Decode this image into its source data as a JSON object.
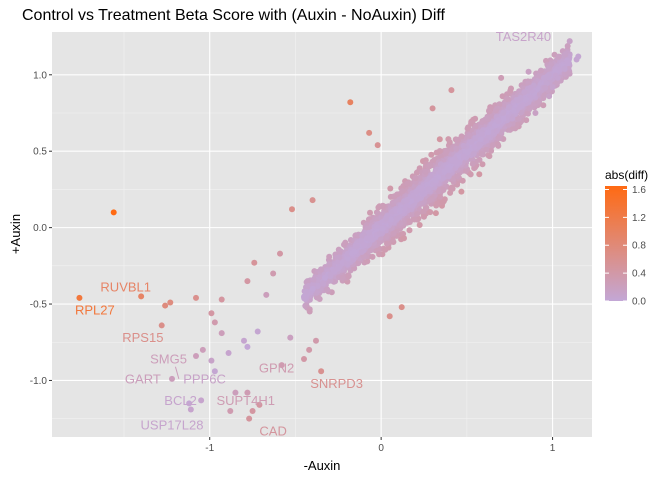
{
  "chart_data": {
    "type": "scatter",
    "title": "Control vs Treatment Beta Score with (Auxin - NoAuxin) Diff",
    "xlabel": "-Auxin",
    "ylabel": "+Auxin",
    "xlim": [
      -1.92,
      1.23
    ],
    "ylim": [
      -1.37,
      1.28
    ],
    "x_ticks": [
      -1,
      0,
      1
    ],
    "x_tick_labels": [
      "-1",
      "0",
      "1"
    ],
    "y_ticks": [
      -1.0,
      -0.5,
      0.0,
      0.5,
      1.0
    ],
    "y_tick_labels": [
      "-1.0",
      "-0.5",
      "0.0",
      "0.5",
      "1.0"
    ],
    "grid": true,
    "background": "#e5e5e5",
    "color_scale": {
      "title": "abs(diff)",
      "low_color": "#c3a7d6",
      "high_color": "#ff6a13",
      "range": [
        0,
        1.65
      ],
      "breaks": [
        0.0,
        0.4,
        0.8,
        1.2,
        1.6
      ],
      "break_labels": [
        "0.0",
        "0.4",
        "0.8",
        "1.2",
        "1.6"
      ],
      "legend_position": "right"
    },
    "cloud": {
      "description": "dense cloud of thousands of genes along the diagonal y≈x",
      "x_range": [
        -0.45,
        1.1
      ],
      "correlation": "strong positive"
    },
    "points": [
      {
        "x": -1.76,
        "y": -0.46,
        "diff": 1.3
      },
      {
        "x": -1.56,
        "y": 0.1,
        "diff": 1.66
      },
      {
        "x": -1.4,
        "y": -0.45,
        "diff": 0.95
      },
      {
        "x": -1.26,
        "y": -0.51,
        "diff": 0.75
      },
      {
        "x": -1.28,
        "y": -0.64,
        "diff": 0.64
      },
      {
        "x": -1.23,
        "y": -0.49,
        "diff": 0.74
      },
      {
        "x": -1.08,
        "y": -0.46,
        "diff": 0.62
      },
      {
        "x": -0.93,
        "y": -0.47,
        "diff": 0.46
      },
      {
        "x": -0.99,
        "y": -0.56,
        "diff": 0.43
      },
      {
        "x": -0.97,
        "y": -0.62,
        "diff": 0.35
      },
      {
        "x": -0.93,
        "y": -0.69,
        "diff": 0.24
      },
      {
        "x": -1.08,
        "y": -0.84,
        "diff": 0.24
      },
      {
        "x": -0.99,
        "y": -0.87,
        "diff": 0.12
      },
      {
        "x": -1.04,
        "y": -0.8,
        "diff": 0.24
      },
      {
        "x": -1.22,
        "y": -0.99,
        "diff": 0.23
      },
      {
        "x": -0.97,
        "y": -0.94,
        "diff": 0.03
      },
      {
        "x": -0.89,
        "y": -0.82,
        "diff": 0.07
      },
      {
        "x": -0.78,
        "y": -0.78,
        "diff": 0.0
      },
      {
        "x": -0.72,
        "y": -0.68,
        "diff": 0.04
      },
      {
        "x": -0.8,
        "y": -0.74,
        "diff": 0.06
      },
      {
        "x": -0.78,
        "y": -1.08,
        "diff": 0.3
      },
      {
        "x": -0.85,
        "y": -1.08,
        "diff": 0.23
      },
      {
        "x": -1.05,
        "y": -1.13,
        "diff": 0.08
      },
      {
        "x": -1.11,
        "y": -1.19,
        "diff": 0.08
      },
      {
        "x": -1.12,
        "y": -1.15,
        "diff": 0.03
      },
      {
        "x": -0.88,
        "y": -1.2,
        "diff": 0.32
      },
      {
        "x": -0.71,
        "y": -1.16,
        "diff": 0.45
      },
      {
        "x": -0.75,
        "y": -1.2,
        "diff": 0.45
      },
      {
        "x": -0.77,
        "y": -1.25,
        "diff": 0.48
      },
      {
        "x": -0.35,
        "y": -0.94,
        "diff": 0.59
      },
      {
        "x": -0.45,
        "y": -0.86,
        "diff": 0.41
      },
      {
        "x": -0.42,
        "y": -0.8,
        "diff": 0.38
      },
      {
        "x": -0.38,
        "y": -0.74,
        "diff": 0.36
      },
      {
        "x": -0.53,
        "y": -0.72,
        "diff": 0.19
      },
      {
        "x": -0.58,
        "y": -0.9,
        "diff": 0.32
      },
      {
        "x": -0.67,
        "y": -0.44,
        "diff": 0.23
      },
      {
        "x": -0.78,
        "y": -0.35,
        "diff": 0.43
      },
      {
        "x": -0.74,
        "y": -0.23,
        "diff": 0.51
      },
      {
        "x": -0.63,
        "y": -0.3,
        "diff": 0.33
      },
      {
        "x": -0.59,
        "y": -0.17,
        "diff": 0.42
      },
      {
        "x": -0.52,
        "y": 0.12,
        "diff": 0.64
      },
      {
        "x": -0.4,
        "y": 0.18,
        "diff": 0.58
      },
      {
        "x": -0.18,
        "y": 0.82,
        "diff": 1.0
      },
      {
        "x": -0.07,
        "y": 0.62,
        "diff": 0.69
      },
      {
        "x": -0.02,
        "y": 0.54,
        "diff": 0.56
      },
      {
        "x": 0.05,
        "y": -0.58,
        "diff": 0.63
      },
      {
        "x": 0.12,
        "y": -0.52,
        "diff": 0.64
      },
      {
        "x": 0.3,
        "y": 0.78,
        "diff": 0.48
      },
      {
        "x": 0.41,
        "y": 0.9,
        "diff": 0.49
      },
      {
        "x": 0.7,
        "y": 0.98,
        "diff": 0.28
      },
      {
        "x": 0.86,
        "y": 1.02,
        "diff": 0.16
      },
      {
        "x": 0.95,
        "y": 0.98,
        "diff": 0.03
      },
      {
        "x": 1.0,
        "y": 0.92,
        "diff": 0.08
      },
      {
        "x": 1.03,
        "y": 0.98,
        "diff": 0.05
      },
      {
        "x": 1.07,
        "y": 1.04,
        "diff": 0.03
      },
      {
        "x": 1.1,
        "y": 1.22,
        "diff": 0.12
      },
      {
        "x": 1.14,
        "y": 1.1,
        "diff": 0.04
      },
      {
        "x": 1.15,
        "y": 1.12,
        "diff": 0.03
      },
      {
        "x": 0.98,
        "y": 0.86,
        "diff": 0.12
      },
      {
        "x": 0.9,
        "y": 0.75,
        "diff": 0.15
      }
    ],
    "labels": [
      {
        "text": "TAS2R40",
        "x": 0.83,
        "y": 1.25,
        "diff": 0.1
      },
      {
        "text": "RUVBL1",
        "x": -1.49,
        "y": -0.39,
        "diff": 0.95
      },
      {
        "text": "RPL27",
        "x": -1.67,
        "y": -0.54,
        "diff": 1.3
      },
      {
        "text": "RPS15",
        "x": -1.39,
        "y": -0.72,
        "diff": 0.64
      },
      {
        "text": "SMG5",
        "x": -1.24,
        "y": -0.86,
        "diff": 0.24
      },
      {
        "text": "GART",
        "x": -1.39,
        "y": -0.99,
        "diff": 0.23
      },
      {
        "text": "PPP6C",
        "x": -1.03,
        "y": -0.99,
        "diff": 0.12
      },
      {
        "text": "GPN2",
        "x": -0.61,
        "y": -0.92,
        "diff": 0.32
      },
      {
        "text": "SNRPD3",
        "x": -0.26,
        "y": -1.02,
        "diff": 0.59
      },
      {
        "text": "BCL2",
        "x": -1.17,
        "y": -1.13,
        "diff": 0.08
      },
      {
        "text": "SUPT4H1",
        "x": -0.79,
        "y": -1.13,
        "diff": 0.3
      },
      {
        "text": "USP17L28",
        "x": -1.22,
        "y": -1.29,
        "diff": 0.08
      },
      {
        "text": "CAD",
        "x": -0.63,
        "y": -1.33,
        "diff": 0.48
      }
    ]
  }
}
